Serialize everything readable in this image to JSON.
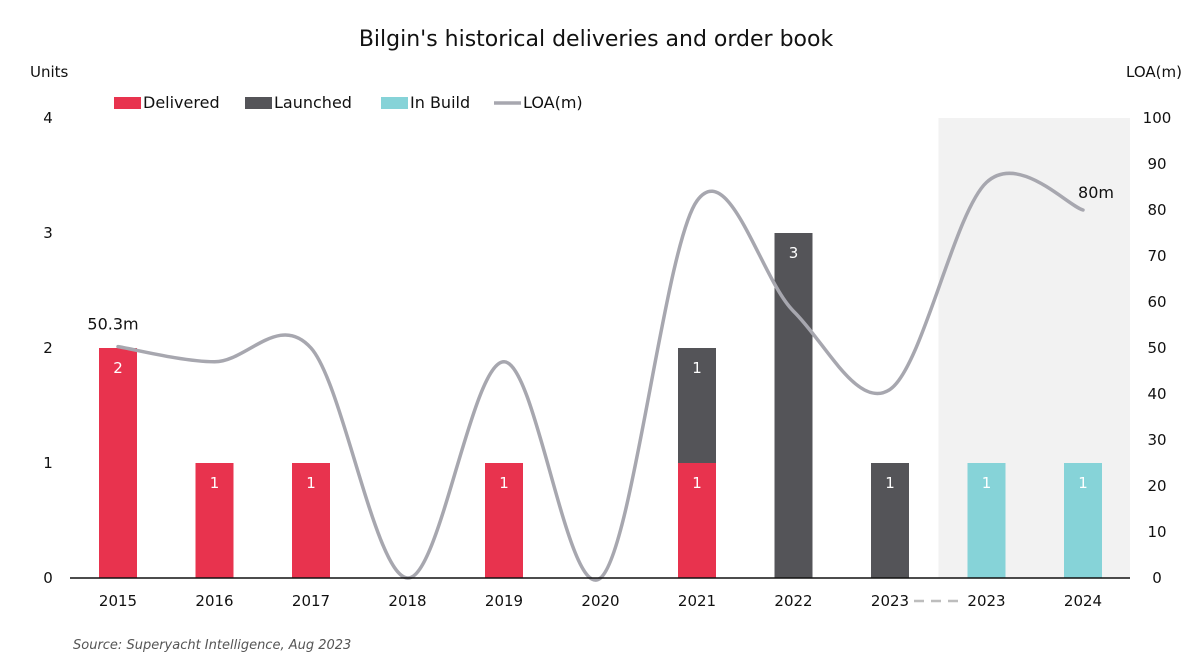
{
  "chart_data": {
    "type": "bar",
    "title": "Bilgin's historical deliveries and order book",
    "ylabel_left": "Units",
    "ylabel_right": "LOA(m)",
    "ylim_left": [
      0,
      4
    ],
    "ylim_right": [
      0,
      100
    ],
    "left_ticks": [
      "0",
      "1",
      "2",
      "3",
      "4"
    ],
    "right_ticks": [
      "0",
      "10",
      "20",
      "30",
      "40",
      "50",
      "60",
      "70",
      "80",
      "90",
      "100"
    ],
    "categories": [
      "2015",
      "2016",
      "2017",
      "2018",
      "2019",
      "2020",
      "2021",
      "2022",
      "2023",
      "2023",
      "2024"
    ],
    "series": [
      {
        "name": "Delivered",
        "color": "#e8334e",
        "values": [
          2,
          1,
          1,
          0,
          1,
          0,
          1,
          0,
          0,
          0,
          0
        ]
      },
      {
        "name": "Launched",
        "color": "#545458",
        "values": [
          0,
          0,
          0,
          0,
          0,
          0,
          1,
          3,
          1,
          0,
          0
        ]
      },
      {
        "name": "In Build",
        "color": "#86d3d8",
        "values": [
          0,
          0,
          0,
          0,
          0,
          0,
          0,
          0,
          0,
          1,
          1
        ]
      }
    ],
    "line_series": {
      "name": "LOA(m)",
      "color": "#a7a7af",
      "values": [
        50.3,
        47,
        50,
        0,
        47,
        0,
        82,
        58,
        41,
        86,
        80
      ],
      "axis": "right"
    },
    "stacked": true,
    "grid": false,
    "legend_position": "top-left",
    "annotations": [
      "50.3m",
      "80m"
    ],
    "shaded_region_categories": [
      "2023",
      "2024"
    ],
    "source": "Source: Superyacht Intelligence, Aug 2023"
  }
}
